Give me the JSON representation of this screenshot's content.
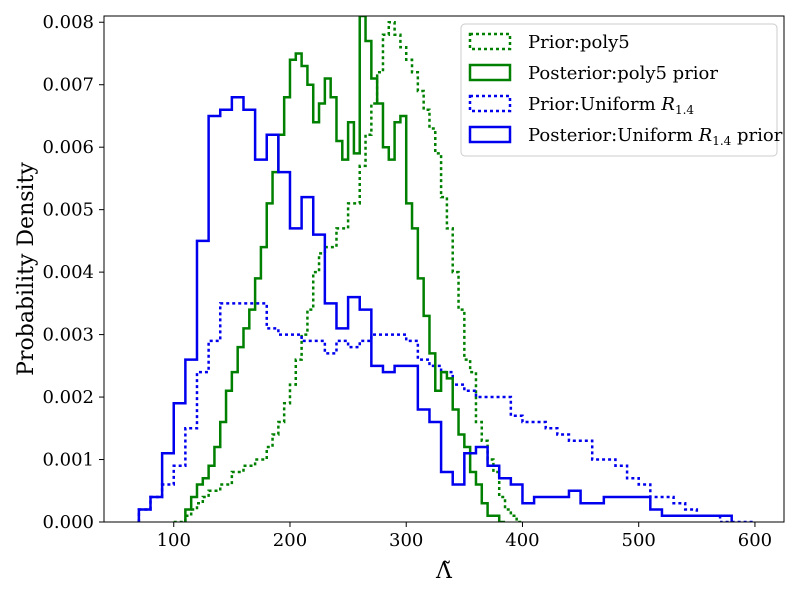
{
  "chart_data": {
    "type": "step-histogram",
    "xlabel": "Λ̃",
    "ylabel": "Probability Density",
    "xlim": [
      40,
      625
    ],
    "ylim": [
      0,
      0.0081
    ],
    "xticks": [
      100,
      200,
      300,
      400,
      500,
      600
    ],
    "yticks": [
      0.0,
      0.001,
      0.002,
      0.003,
      0.004,
      0.005,
      0.006,
      0.007,
      0.008
    ],
    "ytick_labels": [
      "0.000",
      "0.001",
      "0.002",
      "0.003",
      "0.004",
      "0.005",
      "0.006",
      "0.007",
      "0.008"
    ],
    "legend_position": "upper-right",
    "series": [
      {
        "name": "Prior:poly5",
        "color": "#008000",
        "dashed": true,
        "x": [
          100,
          110,
          115,
          120,
          125,
          130,
          140,
          150,
          160,
          170,
          180,
          185,
          190,
          195,
          200,
          205,
          210,
          215,
          220,
          225,
          230,
          240,
          250,
          260,
          265,
          270,
          275,
          280,
          285,
          290,
          295,
          300,
          305,
          310,
          315,
          320,
          325,
          330,
          335,
          340,
          345,
          350,
          355,
          360,
          365,
          370,
          375,
          380,
          385,
          390,
          395,
          400
        ],
        "y": [
          0.0,
          0.0001,
          0.0002,
          0.0003,
          0.0004,
          0.0005,
          0.0006,
          0.0008,
          0.0009,
          0.001,
          0.0012,
          0.0014,
          0.0016,
          0.0019,
          0.0022,
          0.0026,
          0.003,
          0.0034,
          0.004,
          0.0043,
          0.0044,
          0.0047,
          0.0051,
          0.0057,
          0.0062,
          0.0067,
          0.0072,
          0.0078,
          0.008,
          0.0078,
          0.0076,
          0.0074,
          0.0072,
          0.0069,
          0.0066,
          0.0063,
          0.0059,
          0.0052,
          0.0047,
          0.004,
          0.0034,
          0.0026,
          0.0024,
          0.0016,
          0.0013,
          0.001,
          0.0008,
          0.0004,
          0.0002,
          0.0001,
          0.0,
          0.0
        ]
      },
      {
        "name": "Posterior:poly5 prior",
        "color": "#008000",
        "dashed": false,
        "x": [
          110,
          115,
          120,
          125,
          130,
          135,
          140,
          145,
          150,
          155,
          160,
          165,
          170,
          175,
          180,
          185,
          190,
          195,
          200,
          205,
          210,
          215,
          220,
          225,
          230,
          235,
          240,
          245,
          250,
          255,
          260,
          265,
          270,
          275,
          280,
          285,
          290,
          295,
          300,
          305,
          310,
          315,
          320,
          325,
          330,
          335,
          340,
          345,
          350,
          355,
          360,
          365,
          370,
          375,
          380,
          385
        ],
        "y": [
          0.0002,
          0.0004,
          0.0006,
          0.0007,
          0.0009,
          0.0012,
          0.0016,
          0.0021,
          0.0024,
          0.0028,
          0.0031,
          0.0034,
          0.0039,
          0.0044,
          0.0051,
          0.0056,
          0.0062,
          0.0068,
          0.0074,
          0.0075,
          0.0073,
          0.007,
          0.0064,
          0.0067,
          0.0071,
          0.0068,
          0.0061,
          0.0058,
          0.0064,
          0.0059,
          0.0081,
          0.0077,
          0.0071,
          0.0067,
          0.006,
          0.0058,
          0.0064,
          0.0065,
          0.0051,
          0.0047,
          0.0039,
          0.0033,
          0.0027,
          0.0021,
          0.0024,
          0.0023,
          0.0018,
          0.0014,
          0.0012,
          0.0008,
          0.0006,
          0.0003,
          0.0001,
          0.0001,
          0.0,
          0.0
        ]
      },
      {
        "name": "Prior:Uniform R1.4",
        "color": "#0000ee",
        "dashed": true,
        "x": [
          70,
          80,
          90,
          100,
          110,
          120,
          130,
          140,
          150,
          160,
          170,
          180,
          190,
          200,
          210,
          220,
          230,
          240,
          250,
          260,
          270,
          280,
          290,
          300,
          310,
          320,
          330,
          340,
          350,
          360,
          370,
          380,
          390,
          400,
          410,
          420,
          430,
          440,
          450,
          460,
          470,
          480,
          490,
          500,
          510,
          520,
          530,
          540,
          550,
          560,
          570,
          580,
          590,
          600
        ],
        "y": [
          0.0002,
          0.0004,
          0.0006,
          0.0009,
          0.0015,
          0.0024,
          0.0029,
          0.0035,
          0.0035,
          0.0035,
          0.0035,
          0.0031,
          0.003,
          0.003,
          0.0029,
          0.0029,
          0.0027,
          0.0029,
          0.0028,
          0.0029,
          0.003,
          0.003,
          0.003,
          0.0029,
          0.0026,
          0.0025,
          0.0024,
          0.0022,
          0.0021,
          0.002,
          0.002,
          0.002,
          0.0017,
          0.0016,
          0.0016,
          0.0015,
          0.0014,
          0.0013,
          0.0013,
          0.001,
          0.001,
          0.0009,
          0.0007,
          0.0006,
          0.0004,
          0.0004,
          0.0003,
          0.0002,
          0.0001,
          0.0001,
          0.0,
          0.0,
          0.0,
          0.0
        ]
      },
      {
        "name": "Posterior:Uniform R1.4 prior",
        "color": "#0000ee",
        "dashed": false,
        "x": [
          70,
          80,
          90,
          100,
          110,
          120,
          130,
          140,
          150,
          160,
          170,
          180,
          190,
          200,
          210,
          220,
          230,
          240,
          250,
          260,
          270,
          280,
          290,
          300,
          310,
          320,
          330,
          340,
          350,
          360,
          370,
          380,
          390,
          400,
          410,
          420,
          430,
          440,
          450,
          460,
          470,
          480,
          490,
          500,
          510,
          520,
          530,
          540,
          550,
          560,
          570,
          580
        ],
        "y": [
          0.0002,
          0.0004,
          0.0011,
          0.0019,
          0.0026,
          0.0045,
          0.0065,
          0.0066,
          0.0068,
          0.0066,
          0.0058,
          0.0062,
          0.0056,
          0.0047,
          0.0052,
          0.0046,
          0.0035,
          0.0031,
          0.0036,
          0.0034,
          0.0025,
          0.0024,
          0.0025,
          0.0025,
          0.0018,
          0.0016,
          0.0008,
          0.0006,
          0.0011,
          0.0012,
          0.0009,
          0.0007,
          0.0006,
          0.0003,
          0.0004,
          0.0004,
          0.0004,
          0.0005,
          0.0003,
          0.0003,
          0.0004,
          0.0004,
          0.0004,
          0.0004,
          0.0002,
          0.0001,
          0.0001,
          0.0001,
          0.0001,
          0.0001,
          0.0001,
          0.0
        ]
      }
    ]
  }
}
